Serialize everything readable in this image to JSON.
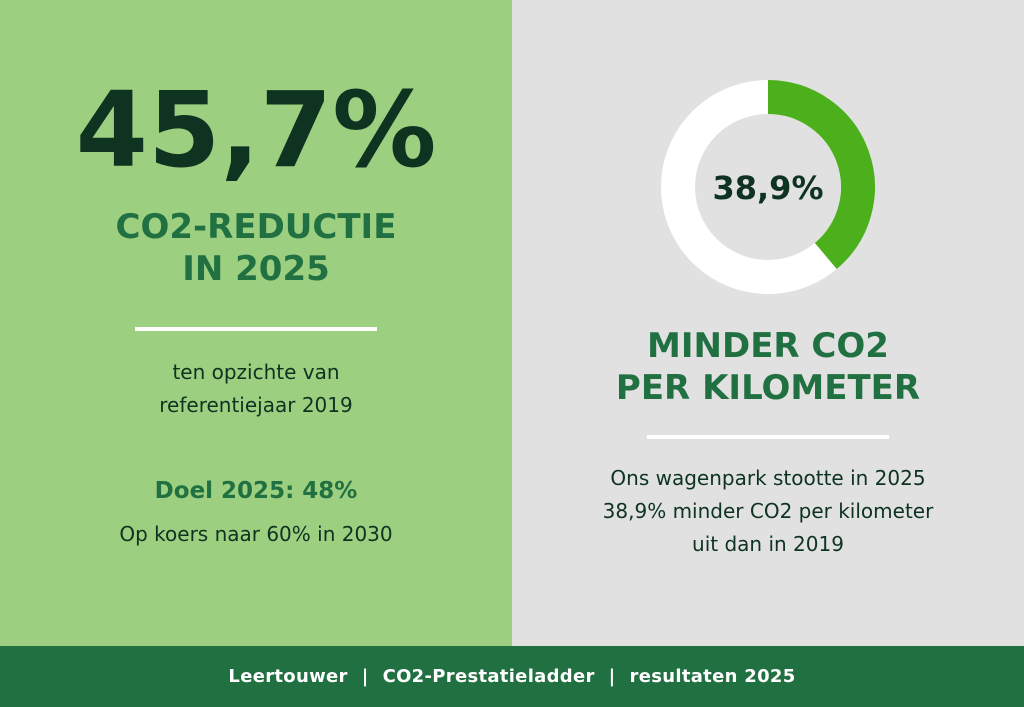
{
  "left": {
    "big_value": "45,7%",
    "headline_line1": "CO2-REDUCTIE",
    "headline_line2": "IN 2025",
    "sub_line1": "ten opzichte van",
    "sub_line2": "referentiejaar 2019",
    "goal": "Doel 2025: 48%",
    "course": "Op koers naar 60% in 2030"
  },
  "right": {
    "donut_label": "38,9%",
    "donut_fraction": 0.389,
    "headline_line1": "MINDER CO2",
    "headline_line2": "PER KILOMETER",
    "text_line1": "Ons wagenpark stootte in 2025",
    "text_line2": "38,9% minder CO2 per kilometer",
    "text_line3": "uit dan in 2019"
  },
  "footer": {
    "company": "Leertouwer",
    "program": "CO2-Prestatieladder",
    "subject": "resultaten 2025",
    "separator": "|"
  },
  "colors": {
    "left_bg": "#9ccf80",
    "right_bg": "#e1e1e1",
    "accent_green": "#217041",
    "dark_text": "#0e3320",
    "donut_fill": "#4caf1c",
    "donut_track": "#ffffff"
  }
}
